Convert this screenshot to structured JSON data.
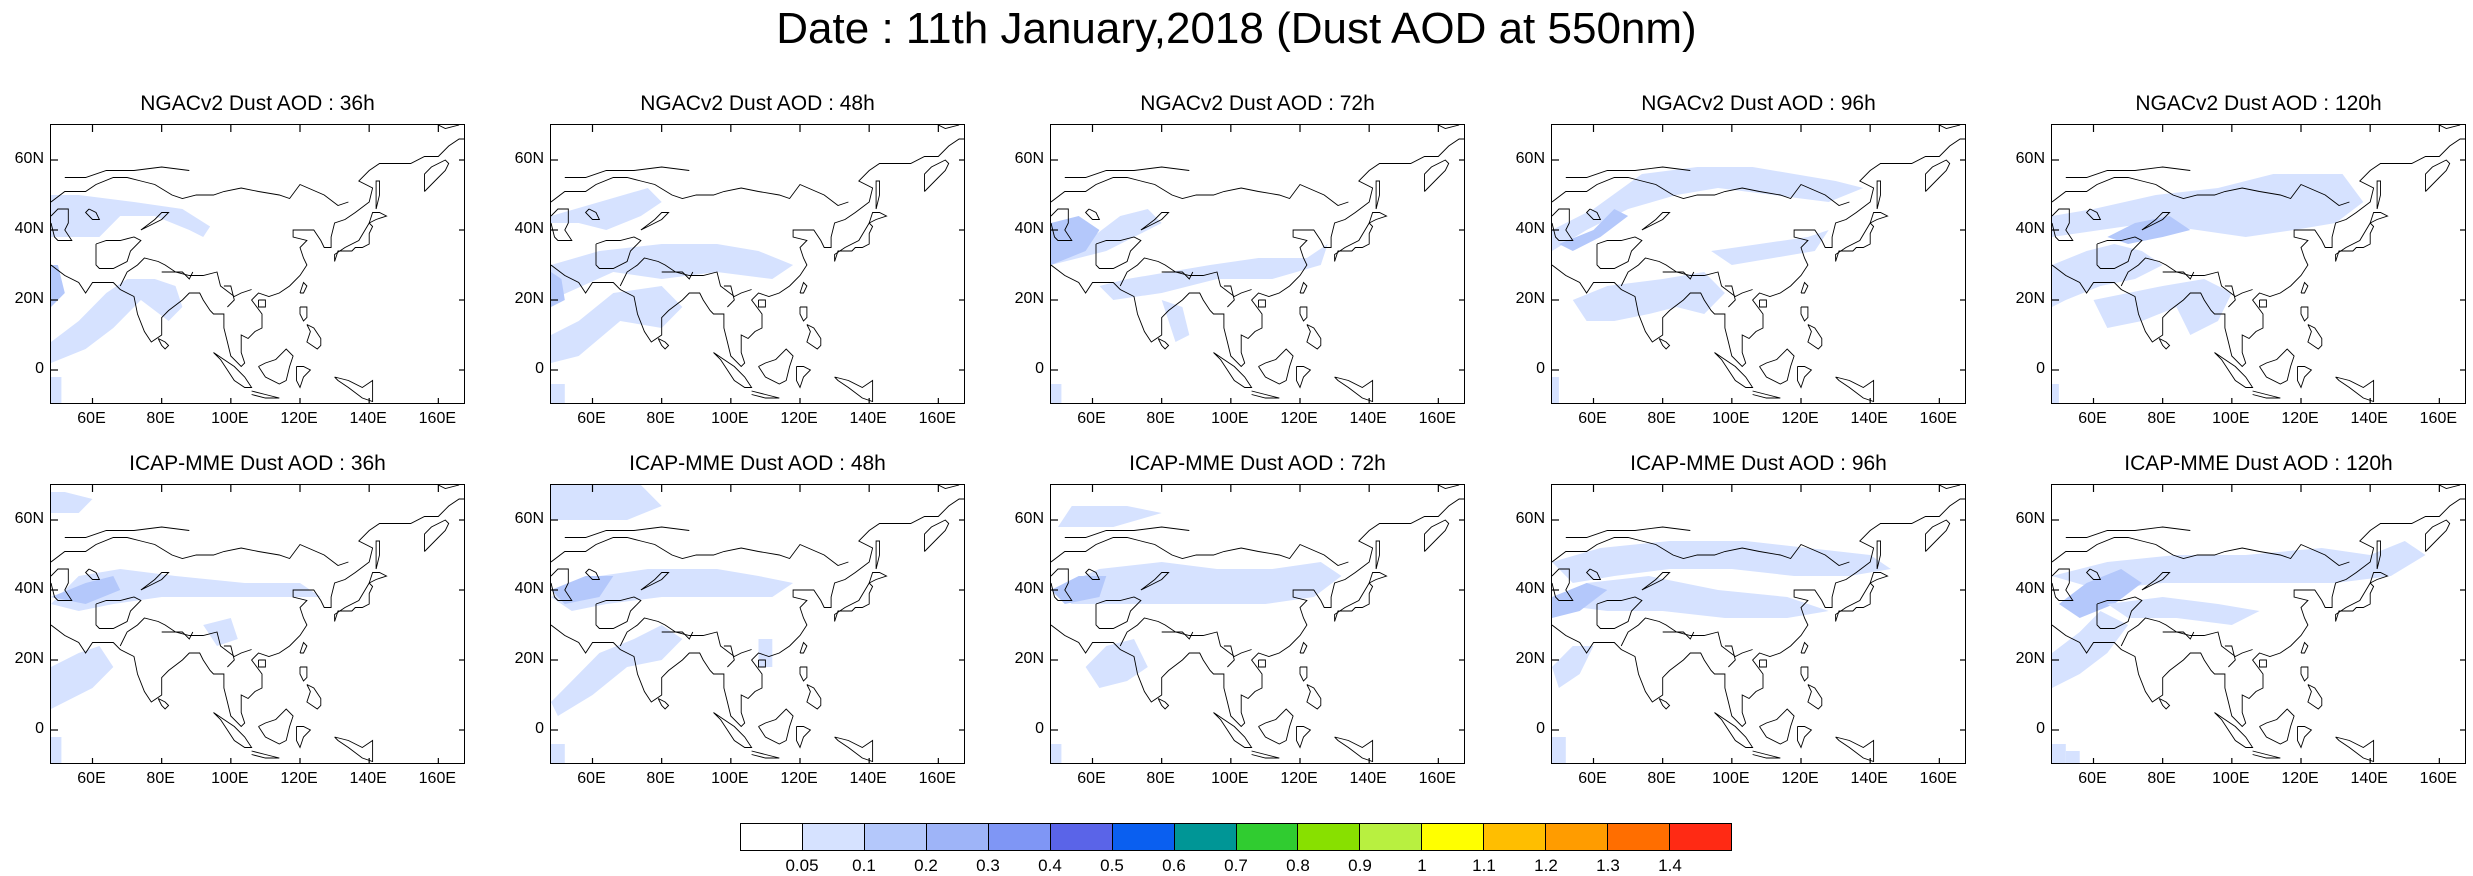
{
  "title": "Date : 11th January,2018 (Dust AOD at 550nm)",
  "lat_ticks": [
    "60N",
    "40N",
    "20N",
    "0"
  ],
  "lat_values": [
    60,
    40,
    20,
    0
  ],
  "lon_ticks": [
    "60E",
    "80E",
    "100E",
    "120E",
    "140E",
    "160E"
  ],
  "lon_values": [
    60,
    80,
    100,
    120,
    140,
    160
  ],
  "map_extent": {
    "lon": [
      48,
      168
    ],
    "lat": [
      -10,
      70
    ]
  },
  "panels": [
    {
      "title": "NGACv2 Dust AOD : 36h",
      "row": 0,
      "col": 0
    },
    {
      "title": "NGACv2 Dust AOD : 48h",
      "row": 0,
      "col": 1
    },
    {
      "title": "NGACv2 Dust AOD : 72h",
      "row": 0,
      "col": 2
    },
    {
      "title": "NGACv2 Dust AOD : 96h",
      "row": 0,
      "col": 3
    },
    {
      "title": "NGACv2 Dust AOD : 120h",
      "row": 0,
      "col": 4
    },
    {
      "title": "ICAP-MME Dust AOD : 36h",
      "row": 1,
      "col": 0
    },
    {
      "title": "ICAP-MME Dust AOD : 48h",
      "row": 1,
      "col": 1
    },
    {
      "title": "ICAP-MME Dust AOD : 72h",
      "row": 1,
      "col": 2
    },
    {
      "title": "ICAP-MME Dust AOD : 96h",
      "row": 1,
      "col": 3
    },
    {
      "title": "ICAP-MME Dust AOD : 120h",
      "row": 1,
      "col": 4
    }
  ],
  "colorbar": {
    "labels": [
      "0.05",
      "0.1",
      "0.2",
      "0.3",
      "0.4",
      "0.5",
      "0.6",
      "0.7",
      "0.8",
      "0.9",
      "1",
      "1.1",
      "1.2",
      "1.3",
      "1.4"
    ],
    "colors": [
      "#ffffff",
      "#d6e2ff",
      "#b4c8fb",
      "#9eb4f8",
      "#7f96f5",
      "#5a64e8",
      "#0a5ff0",
      "#009696",
      "#30cc30",
      "#88e000",
      "#b8f040",
      "#ffff00",
      "#ffbe00",
      "#ff9c00",
      "#ff6e00",
      "#ff2a14"
    ]
  }
}
